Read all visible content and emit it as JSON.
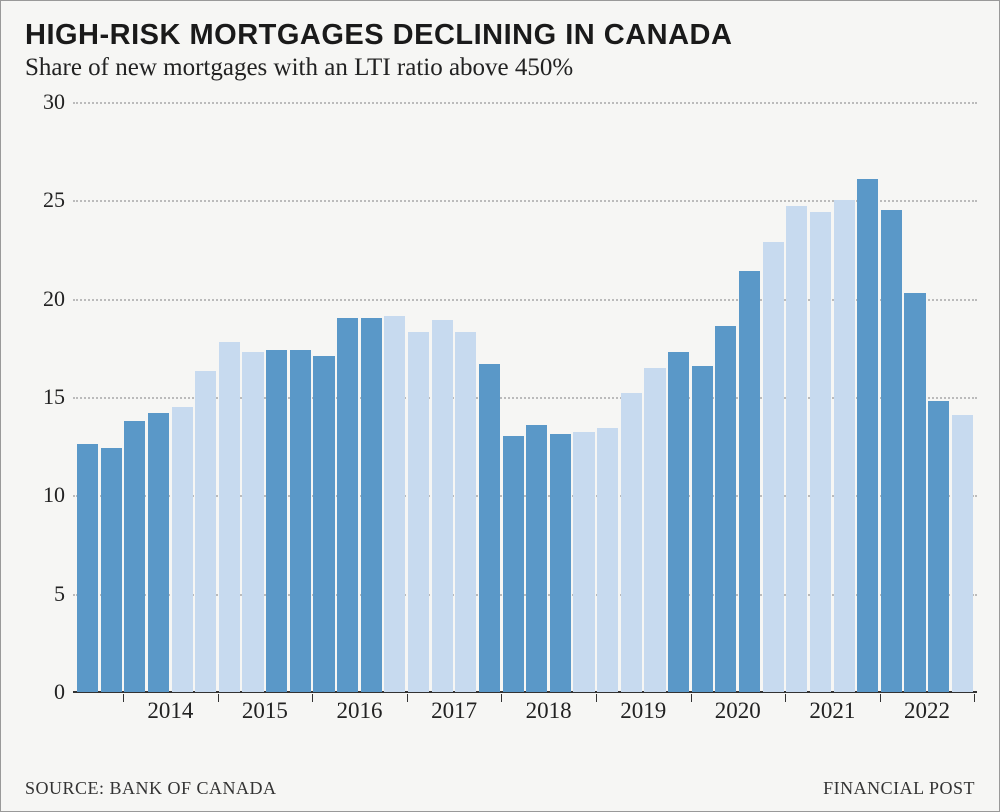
{
  "title": "HIGH-RISK MORTGAGES DECLINING IN CANADA",
  "subtitle": "Share of new mortgages with an LTI ratio above 450%",
  "source": "SOURCE: BANK OF CANADA",
  "brand": "FINANCIAL POST",
  "chart": {
    "type": "bar",
    "background_color": "#f6f6f4",
    "ylim": [
      0,
      30
    ],
    "ytick_step": 5,
    "yticks": [
      0,
      5,
      10,
      15,
      20,
      25,
      30
    ],
    "grid_color": "#bbbbbb",
    "baseline_color": "#333333",
    "label_fontsize": 22,
    "label_color": "#222222",
    "title_fontsize": 29,
    "subtitle_fontsize": 25,
    "colors": {
      "dark": "#5a98c8",
      "light": "#c7daef"
    },
    "bars": [
      {
        "v": 12.6,
        "c": "dark"
      },
      {
        "v": 12.4,
        "c": "dark"
      },
      {
        "v": 13.8,
        "c": "dark"
      },
      {
        "v": 14.2,
        "c": "dark"
      },
      {
        "v": 14.5,
        "c": "light"
      },
      {
        "v": 16.3,
        "c": "light"
      },
      {
        "v": 17.8,
        "c": "light"
      },
      {
        "v": 17.3,
        "c": "light"
      },
      {
        "v": 17.4,
        "c": "dark"
      },
      {
        "v": 17.4,
        "c": "dark"
      },
      {
        "v": 17.1,
        "c": "dark"
      },
      {
        "v": 19.0,
        "c": "dark"
      },
      {
        "v": 19.0,
        "c": "dark"
      },
      {
        "v": 19.1,
        "c": "light"
      },
      {
        "v": 18.3,
        "c": "light"
      },
      {
        "v": 18.9,
        "c": "light"
      },
      {
        "v": 18.3,
        "c": "light"
      },
      {
        "v": 16.7,
        "c": "dark"
      },
      {
        "v": 13.0,
        "c": "dark"
      },
      {
        "v": 13.6,
        "c": "dark"
      },
      {
        "v": 13.1,
        "c": "dark"
      },
      {
        "v": 13.2,
        "c": "light"
      },
      {
        "v": 13.4,
        "c": "light"
      },
      {
        "v": 15.2,
        "c": "light"
      },
      {
        "v": 16.5,
        "c": "light"
      },
      {
        "v": 17.3,
        "c": "dark"
      },
      {
        "v": 16.6,
        "c": "dark"
      },
      {
        "v": 18.6,
        "c": "dark"
      },
      {
        "v": 21.4,
        "c": "dark"
      },
      {
        "v": 22.9,
        "c": "light"
      },
      {
        "v": 24.7,
        "c": "light"
      },
      {
        "v": 24.4,
        "c": "light"
      },
      {
        "v": 25.0,
        "c": "light"
      },
      {
        "v": 26.1,
        "c": "dark"
      },
      {
        "v": 24.5,
        "c": "dark"
      },
      {
        "v": 20.3,
        "c": "dark"
      },
      {
        "v": 14.8,
        "c": "dark"
      },
      {
        "v": 14.1,
        "c": "light"
      }
    ],
    "years": [
      "2014",
      "2015",
      "2016",
      "2017",
      "2018",
      "2019",
      "2020",
      "2021",
      "2022"
    ],
    "xtick_count": 10
  }
}
